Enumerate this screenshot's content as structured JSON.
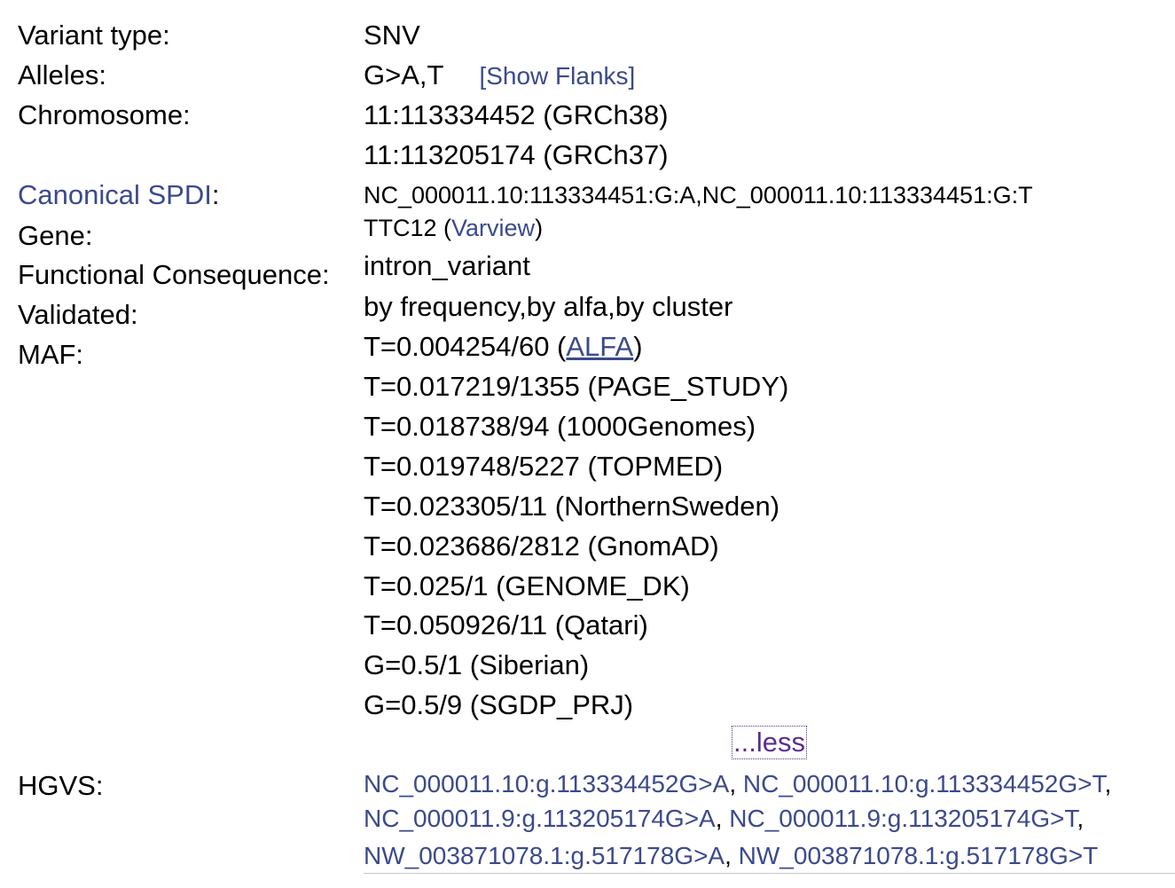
{
  "fields": {
    "variant_type": {
      "label": "Variant type:",
      "value": "SNV"
    },
    "alleles": {
      "label": "Alleles:",
      "value": "G>A,T",
      "flanks_link": "[Show Flanks]"
    },
    "chromosome": {
      "label": "Chromosome:",
      "grch38": "11:113334452 (GRCh38)",
      "grch37": "11:113205174 (GRCh37)"
    },
    "spdi": {
      "label": "Canonical SPDI",
      "colon": ":",
      "value": "NC_000011.10:113334451:G:A,NC_000011.10:113334451:G:T"
    },
    "gene": {
      "label": "Gene:",
      "name": "TTC12",
      "open_paren": " (",
      "link": "Varview",
      "close_paren": ")"
    },
    "consequence": {
      "label": "Functional Consequence:",
      "value": "intron_variant"
    },
    "validated": {
      "label": "Validated:",
      "value": "by frequency,by alfa,by cluster"
    },
    "maf": {
      "label": "MAF:",
      "first_prefix": "T=0.004254/60 (",
      "first_link": "ALFA",
      "first_suffix": ")",
      "entries": [
        "T=0.017219/1355 (PAGE_STUDY)",
        "T=0.018738/94 (1000Genomes)",
        "T=0.019748/5227 (TOPMED)",
        "T=0.023305/11 (NorthernSweden)",
        "T=0.023686/2812 (GnomAD)",
        "T=0.025/1 (GENOME_DK)",
        "T=0.050926/11 (Qatari)",
        "G=0.5/1 (Siberian)",
        "G=0.5/9 (SGDP_PRJ)"
      ],
      "less_link": "...less"
    },
    "hgvs": {
      "label": "HGVS:",
      "lines": [
        [
          "NC_000011.10:g.113334452G>A",
          "NC_000011.10:g.113334452G>T"
        ],
        [
          "NC_000011.9:g.113205174G>A",
          "NC_000011.9:g.113205174G>T"
        ],
        [
          "NW_003871078.1:g.517178G>A",
          "NW_003871078.1:g.517178G>T"
        ]
      ],
      "separator": ", ",
      "trailing": ","
    }
  }
}
